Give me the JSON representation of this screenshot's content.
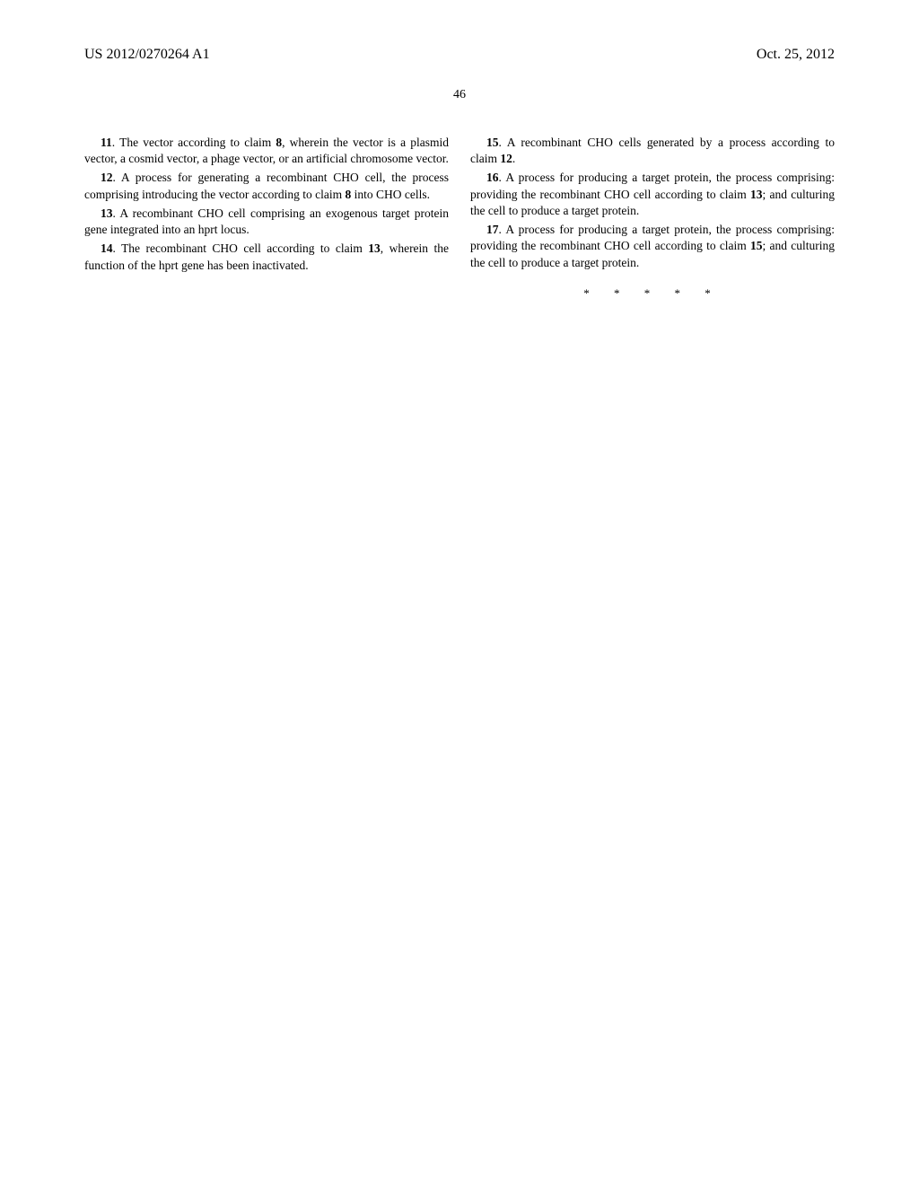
{
  "header": {
    "left": "US 2012/0270264 A1",
    "right": "Oct. 25, 2012"
  },
  "page_number": "46",
  "left_column": {
    "claims": [
      {
        "num": "11",
        "text_before_ref": ". The vector according to claim ",
        "ref": "8",
        "text_after_ref": ", wherein the vector is a plasmid vector, a cosmid vector, a phage vector, or an artificial chromosome vector."
      },
      {
        "num": "12",
        "text_before_ref": ". A process for generating a recombinant CHO cell, the process comprising introducing the vector according to claim ",
        "ref": "8",
        "text_after_ref": " into CHO cells."
      },
      {
        "num": "13",
        "text_before_ref": ". A recombinant CHO cell comprising an exogenous target protein gene integrated into an hprt locus.",
        "ref": "",
        "text_after_ref": ""
      },
      {
        "num": "14",
        "text_before_ref": ". The recombinant CHO cell according to claim ",
        "ref": "13",
        "text_after_ref": ", wherein the function of the hprt gene has been inactivated."
      }
    ]
  },
  "right_column": {
    "claims": [
      {
        "num": "15",
        "text_before_ref": ". A recombinant CHO cells generated by a process according to claim ",
        "ref": "12",
        "text_after_ref": "."
      },
      {
        "num": "16",
        "text_before_ref": ". A process for producing a target protein, the process comprising: providing the recombinant CHO cell according to claim ",
        "ref": "13",
        "text_after_ref": "; and culturing the cell to produce a target protein."
      },
      {
        "num": "17",
        "text_before_ref": ". A process for producing a target protein, the process comprising: providing the recombinant CHO cell according to claim ",
        "ref": "15",
        "text_after_ref": "; and culturing the cell to produce a target protein."
      }
    ],
    "stars": "*   *   *   *   *"
  }
}
